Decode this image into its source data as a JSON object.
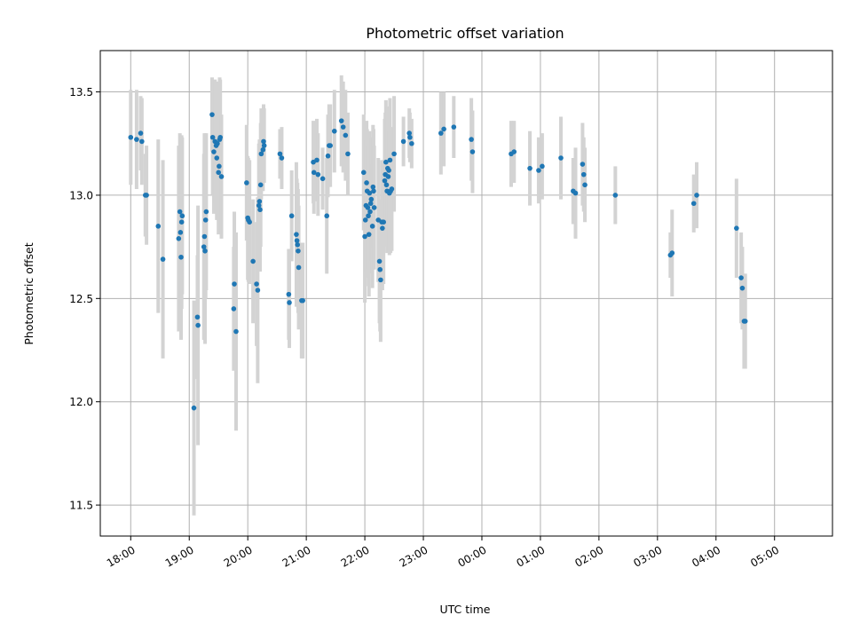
{
  "chart_data": {
    "type": "scatter",
    "title": "Photometric offset variation",
    "xlabel": "UTC time",
    "ylabel": "Photometric offset",
    "x_unit": "hours since 18:00 UTC (x axis printed as HH:MM clock times)",
    "xlim": [
      -0.52,
      11.99
    ],
    "ylim": [
      11.35,
      13.7
    ],
    "x_ticks": [
      0,
      1,
      2,
      3,
      4,
      5,
      6,
      7,
      8,
      9,
      10,
      11
    ],
    "x_tick_labels": [
      "18:00",
      "19:00",
      "20:00",
      "21:00",
      "22:00",
      "23:00",
      "00:00",
      "01:00",
      "02:00",
      "03:00",
      "04:00",
      "05:00"
    ],
    "y_ticks": [
      11.5,
      12.0,
      12.5,
      13.0,
      13.5
    ],
    "y_tick_labels": [
      "11.5",
      "12.0",
      "12.5",
      "13.0",
      "13.5"
    ],
    "grid": true,
    "colors": {
      "point": "#1f77b4",
      "errorbar": "#d3d3d3",
      "grid": "#b0b0b0"
    },
    "series": [
      {
        "marker": "point",
        "points": [
          [
            0.0,
            13.28,
            0.23
          ],
          [
            0.1,
            13.27,
            0.24
          ],
          [
            0.17,
            13.3,
            0.18
          ],
          [
            0.19,
            13.26,
            0.21
          ],
          [
            0.25,
            13.0,
            0.2
          ],
          [
            0.27,
            13.0,
            0.24
          ],
          [
            0.47,
            12.85,
            0.42
          ],
          [
            0.55,
            12.69,
            0.48
          ],
          [
            0.82,
            12.79,
            0.45
          ],
          [
            0.84,
            12.92,
            0.38
          ],
          [
            0.85,
            12.82,
            0.4
          ],
          [
            0.86,
            12.7,
            0.4
          ],
          [
            0.87,
            12.87,
            0.42
          ],
          [
            0.88,
            12.9,
            0.38
          ],
          [
            1.08,
            11.97,
            0.52
          ],
          [
            1.14,
            12.41,
            0.3
          ],
          [
            1.15,
            12.37,
            0.58
          ],
          [
            1.25,
            12.75,
            0.45
          ],
          [
            1.26,
            12.8,
            0.5
          ],
          [
            1.27,
            12.73,
            0.45
          ],
          [
            1.28,
            12.88,
            0.38
          ],
          [
            1.29,
            12.92,
            0.38
          ],
          [
            1.39,
            13.39,
            0.18
          ],
          [
            1.4,
            13.28,
            0.28
          ],
          [
            1.42,
            13.21,
            0.3
          ],
          [
            1.44,
            13.26,
            0.3
          ],
          [
            1.46,
            13.24,
            0.3
          ],
          [
            1.47,
            13.18,
            0.3
          ],
          [
            1.48,
            13.25,
            0.3
          ],
          [
            1.5,
            13.11,
            0.3
          ],
          [
            1.51,
            13.14,
            0.3
          ],
          [
            1.52,
            13.27,
            0.3
          ],
          [
            1.53,
            13.28,
            0.28
          ],
          [
            1.55,
            13.09,
            0.3
          ],
          [
            1.76,
            12.45,
            0.3
          ],
          [
            1.77,
            12.57,
            0.35
          ],
          [
            1.8,
            12.34,
            0.48
          ],
          [
            1.98,
            13.06,
            0.28
          ],
          [
            2.0,
            12.89,
            0.3
          ],
          [
            2.01,
            12.88,
            0.3
          ],
          [
            2.03,
            12.87,
            0.3
          ],
          [
            2.09,
            12.68,
            0.3
          ],
          [
            2.15,
            12.57,
            0.3
          ],
          [
            2.17,
            12.54,
            0.45
          ],
          [
            2.19,
            12.95,
            0.3
          ],
          [
            2.2,
            12.97,
            0.3
          ],
          [
            2.21,
            12.93,
            0.3
          ],
          [
            2.22,
            13.05,
            0.3
          ],
          [
            2.23,
            13.2,
            0.22
          ],
          [
            2.26,
            13.22,
            0.2
          ],
          [
            2.27,
            13.26,
            0.18
          ],
          [
            2.28,
            13.24,
            0.18
          ],
          [
            2.55,
            13.2,
            0.12
          ],
          [
            2.58,
            13.18,
            0.15
          ],
          [
            2.7,
            12.52,
            0.22
          ],
          [
            2.71,
            12.48,
            0.22
          ],
          [
            2.75,
            12.9,
            0.22
          ],
          [
            2.83,
            12.81,
            0.35
          ],
          [
            2.84,
            12.78,
            0.3
          ],
          [
            2.85,
            12.76,
            0.3
          ],
          [
            2.86,
            12.73,
            0.3
          ],
          [
            2.87,
            12.65,
            0.3
          ],
          [
            2.92,
            12.49,
            0.28
          ],
          [
            2.94,
            12.49,
            0.28
          ],
          [
            3.12,
            13.16,
            0.2
          ],
          [
            3.13,
            13.11,
            0.2
          ],
          [
            3.18,
            13.17,
            0.2
          ],
          [
            3.2,
            13.1,
            0.2
          ],
          [
            3.28,
            13.08,
            0.15
          ],
          [
            3.35,
            12.9,
            0.28
          ],
          [
            3.37,
            13.19,
            0.2
          ],
          [
            3.39,
            13.24,
            0.2
          ],
          [
            3.41,
            13.24,
            0.2
          ],
          [
            3.48,
            13.31,
            0.2
          ],
          [
            3.6,
            13.36,
            0.22
          ],
          [
            3.63,
            13.33,
            0.22
          ],
          [
            3.67,
            13.29,
            0.22
          ],
          [
            3.71,
            13.2,
            0.2
          ],
          [
            3.98,
            13.11,
            0.28
          ],
          [
            4.0,
            12.8,
            0.32
          ],
          [
            4.01,
            12.88,
            0.32
          ],
          [
            4.02,
            12.95,
            0.32
          ],
          [
            4.03,
            13.06,
            0.3
          ],
          [
            4.04,
            13.02,
            0.3
          ],
          [
            4.05,
            12.94,
            0.3
          ],
          [
            4.06,
            12.9,
            0.3
          ],
          [
            4.07,
            12.81,
            0.3
          ],
          [
            4.08,
            13.01,
            0.3
          ],
          [
            4.09,
            12.92,
            0.3
          ],
          [
            4.1,
            12.96,
            0.3
          ],
          [
            4.11,
            12.98,
            0.3
          ],
          [
            4.13,
            12.85,
            0.3
          ],
          [
            4.14,
            13.04,
            0.3
          ],
          [
            4.15,
            13.02,
            0.3
          ],
          [
            4.16,
            12.94,
            0.3
          ],
          [
            4.23,
            12.88,
            0.3
          ],
          [
            4.25,
            12.68,
            0.3
          ],
          [
            4.26,
            12.64,
            0.3
          ],
          [
            4.27,
            12.59,
            0.3
          ],
          [
            4.29,
            12.87,
            0.3
          ],
          [
            4.3,
            12.84,
            0.3
          ],
          [
            4.32,
            12.87,
            0.3
          ],
          [
            4.34,
            13.07,
            0.3
          ],
          [
            4.35,
            13.1,
            0.3
          ],
          [
            4.36,
            13.16,
            0.3
          ],
          [
            4.37,
            13.05,
            0.3
          ],
          [
            4.38,
            13.02,
            0.3
          ],
          [
            4.39,
            13.13,
            0.3
          ],
          [
            4.4,
            13.09,
            0.3
          ],
          [
            4.41,
            13.12,
            0.3
          ],
          [
            4.42,
            13.01,
            0.3
          ],
          [
            4.43,
            13.17,
            0.3
          ],
          [
            4.44,
            13.02,
            0.3
          ],
          [
            4.46,
            13.03,
            0.3
          ],
          [
            4.5,
            13.2,
            0.28
          ],
          [
            4.66,
            13.26,
            0.12
          ],
          [
            4.76,
            13.3,
            0.12
          ],
          [
            4.77,
            13.28,
            0.12
          ],
          [
            4.8,
            13.25,
            0.12
          ],
          [
            5.3,
            13.3,
            0.2
          ],
          [
            5.35,
            13.32,
            0.18
          ],
          [
            5.52,
            13.33,
            0.15
          ],
          [
            5.82,
            13.27,
            0.2
          ],
          [
            5.84,
            13.21,
            0.2
          ],
          [
            6.5,
            13.2,
            0.16
          ],
          [
            6.55,
            13.21,
            0.15
          ],
          [
            6.82,
            13.13,
            0.18
          ],
          [
            6.97,
            13.12,
            0.16
          ],
          [
            7.03,
            13.14,
            0.16
          ],
          [
            7.35,
            13.18,
            0.2
          ],
          [
            7.56,
            13.02,
            0.16
          ],
          [
            7.6,
            13.01,
            0.22
          ],
          [
            7.72,
            13.15,
            0.2
          ],
          [
            7.74,
            13.1,
            0.18
          ],
          [
            7.76,
            13.05,
            0.18
          ],
          [
            8.28,
            13.0,
            0.14
          ],
          [
            9.22,
            12.71,
            0.11
          ],
          [
            9.25,
            12.72,
            0.21
          ],
          [
            9.62,
            12.96,
            0.14
          ],
          [
            9.67,
            13.0,
            0.16
          ],
          [
            10.35,
            12.84,
            0.24
          ],
          [
            10.43,
            12.6,
            0.22
          ],
          [
            10.45,
            12.55,
            0.2
          ],
          [
            10.48,
            12.39,
            0.23
          ],
          [
            10.5,
            12.39,
            0.23
          ]
        ]
      }
    ]
  }
}
